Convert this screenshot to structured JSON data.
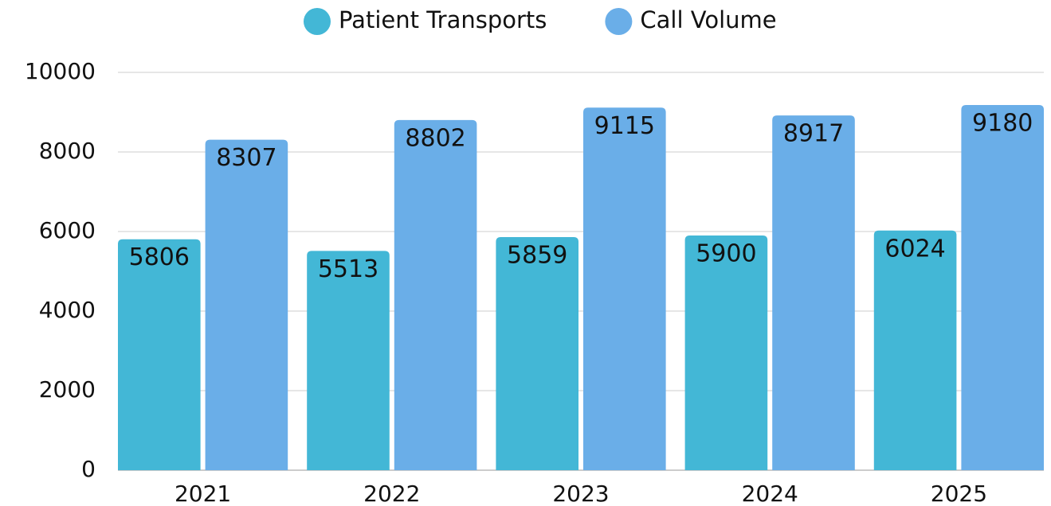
{
  "chart_data": {
    "type": "bar",
    "categories": [
      "2021",
      "2022",
      "2023",
      "2024",
      "2025"
    ],
    "series": [
      {
        "name": "Patient Transports",
        "color": "#43b7d6",
        "values": [
          5806,
          5513,
          5859,
          5900,
          6024
        ]
      },
      {
        "name": "Call Volume",
        "color": "#6aaee8",
        "values": [
          8307,
          8802,
          9115,
          8917,
          9180
        ]
      }
    ],
    "ylim": [
      0,
      10000
    ],
    "yticks": [
      0,
      2000,
      4000,
      6000,
      8000,
      10000
    ],
    "grid": true,
    "legend": "top"
  }
}
